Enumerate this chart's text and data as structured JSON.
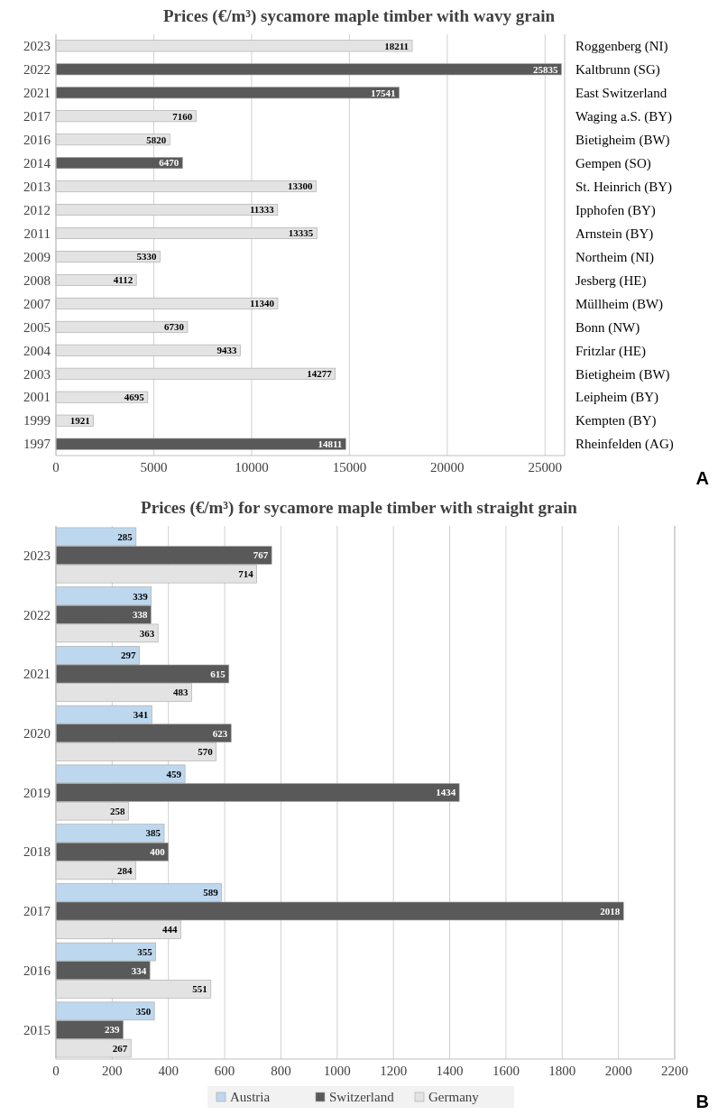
{
  "chart_data": [
    {
      "type": "bar",
      "orientation": "horizontal",
      "title": "Prices (€/m³) sycamore maple timber with wavy grain",
      "categories": [
        "2023",
        "2022",
        "2021",
        "2017",
        "2016",
        "2014",
        "2013",
        "2012",
        "2011",
        "2009",
        "2008",
        "2007",
        "2005",
        "2004",
        "2003",
        "2001",
        "1999",
        "1997"
      ],
      "values": [
        18211,
        25835,
        17541,
        7160,
        5820,
        6470,
        13300,
        11333,
        13335,
        5330,
        4112,
        11340,
        6730,
        9433,
        14277,
        4695,
        1921,
        14811
      ],
      "colors": [
        "#e3e3e3",
        "#595959",
        "#595959",
        "#e3e3e3",
        "#e3e3e3",
        "#595959",
        "#e3e3e3",
        "#e3e3e3",
        "#e3e3e3",
        "#e3e3e3",
        "#e3e3e3",
        "#e3e3e3",
        "#e3e3e3",
        "#e3e3e3",
        "#e3e3e3",
        "#e3e3e3",
        "#e3e3e3",
        "#595959"
      ],
      "xlim": [
        0,
        26000
      ],
      "xticks": [
        0,
        5000,
        10000,
        15000,
        20000,
        25000
      ],
      "grid": "x",
      "data_labels": true,
      "annotations": [
        "Roggenberg (NI)",
        "Kaltbrunn (SG)",
        "East Switzerland",
        "Waging a.S. (BY)",
        "Bietigheim (BW)",
        "Gempen (SO)",
        "St. Heinrich (BY)",
        "Ipphofen (BY)",
        "Arnstein (BY)",
        "Northeim (NI)",
        "Jesberg (HE)",
        "Müllheim (BW)",
        "Bonn (NW)",
        "Fritzlar (HE)",
        "Bietigheim (BW)",
        "Leipheim (BY)",
        "Kempten (BY)",
        "Rheinfelden (AG)",
        "A"
      ]
    },
    {
      "type": "bar",
      "orientation": "horizontal",
      "title": "Prices (€/m³) for sycamore maple timber with straight grain",
      "categories": [
        "2023",
        "2022",
        "2021",
        "2020",
        "2019",
        "2018",
        "2017",
        "2016",
        "2015"
      ],
      "series": [
        {
          "name": "Austria",
          "color": "#bdd7ee",
          "values": [
            285,
            339,
            297,
            341,
            459,
            385,
            589,
            355,
            350
          ]
        },
        {
          "name": "Switzerland",
          "color": "#595959",
          "values": [
            767,
            338,
            615,
            623,
            1434,
            400,
            2018,
            334,
            239
          ]
        },
        {
          "name": "Germany",
          "color": "#e3e3e3",
          "values": [
            714,
            363,
            483,
            570,
            258,
            284,
            444,
            551,
            267
          ]
        }
      ],
      "xlim": [
        0,
        2200
      ],
      "xticks": [
        0,
        200,
        400,
        600,
        800,
        1000,
        1200,
        1400,
        1600,
        1800,
        2000,
        2200
      ],
      "grid": "x",
      "data_labels": true,
      "legend": "bottom",
      "annotations": [
        "B"
      ]
    }
  ]
}
